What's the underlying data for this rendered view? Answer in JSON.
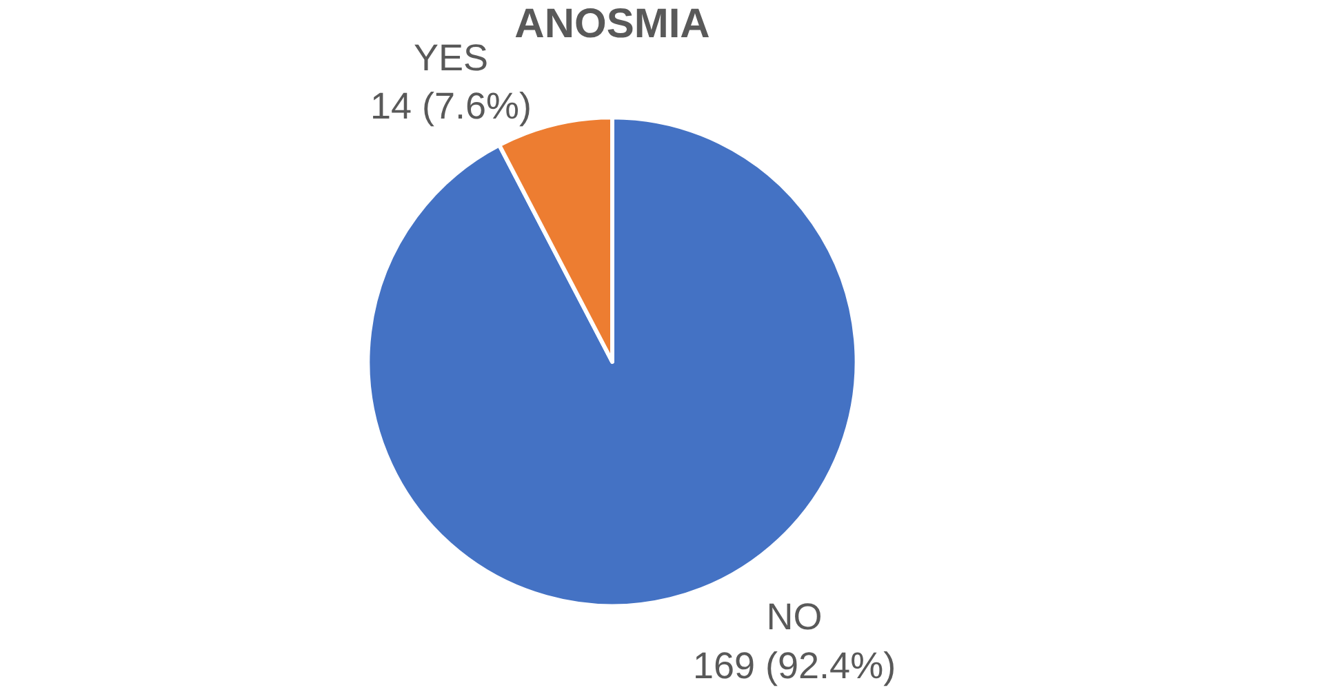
{
  "chart_data": {
    "type": "pie",
    "title": "ANOSMIA",
    "categories": [
      "NO",
      "YES"
    ],
    "values": [
      169,
      14
    ],
    "colors": [
      "#4472c4",
      "#ed7d31"
    ],
    "value_labels": [
      "169 (92.4%)",
      "14 (7.6%)"
    ],
    "legend": false
  }
}
